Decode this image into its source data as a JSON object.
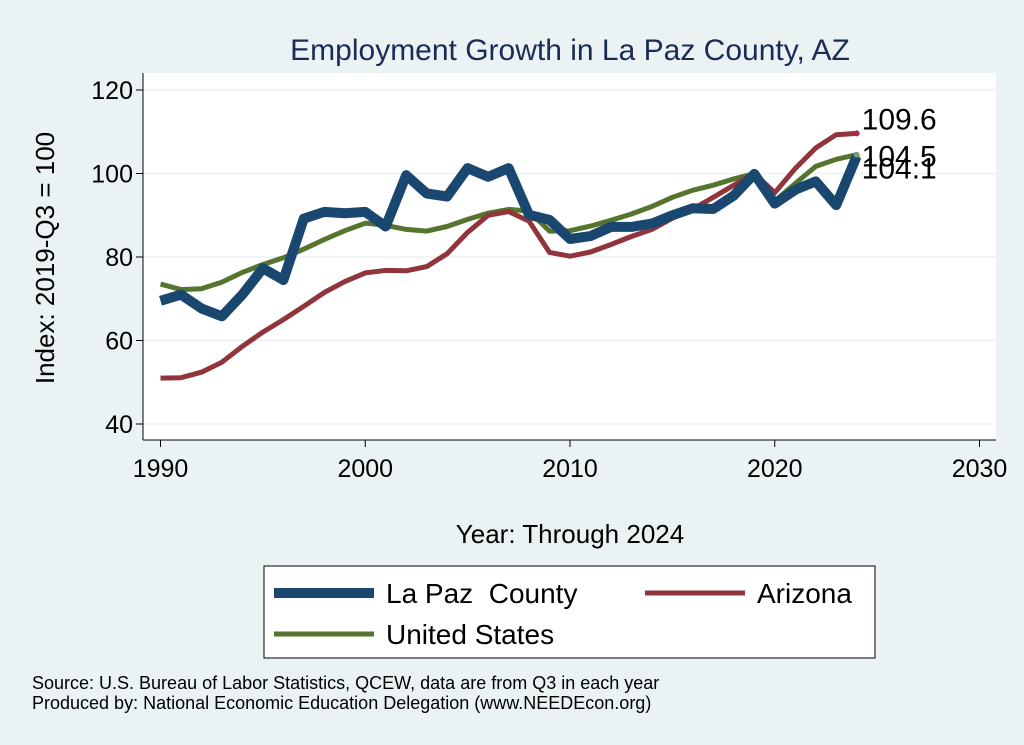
{
  "chart_data": {
    "type": "line",
    "title": "Employment Growth in La Paz County, AZ",
    "xlabel": "Year: Through 2024",
    "ylabel": "Index: 2019-Q3 = 100",
    "xlim": [
      1990,
      2030
    ],
    "ylim": [
      40,
      120
    ],
    "xticks": [
      1990,
      2000,
      2010,
      2020,
      2030
    ],
    "yticks": [
      40,
      60,
      80,
      100,
      120
    ],
    "grid": true,
    "legend_position": "bottom",
    "x": [
      1990,
      1991,
      1992,
      1993,
      1994,
      1995,
      1996,
      1997,
      1998,
      1999,
      2000,
      2001,
      2002,
      2003,
      2004,
      2005,
      2006,
      2007,
      2008,
      2009,
      2010,
      2011,
      2012,
      2013,
      2014,
      2015,
      2016,
      2017,
      2018,
      2019,
      2020,
      2021,
      2022,
      2023,
      2024
    ],
    "series": [
      {
        "name": "La Paz  County",
        "color": "#1a476f",
        "end_label": "104.1",
        "values": [
          69.5,
          71,
          67.7,
          65.8,
          71,
          77.3,
          74.5,
          89.2,
          90.8,
          90.5,
          90.8,
          87.3,
          99.6,
          95.2,
          94.5,
          101.3,
          99.2,
          101.3,
          90.1,
          88.9,
          84.3,
          85,
          87.2,
          87.2,
          88,
          90,
          91.7,
          91.5,
          94.7,
          99.9,
          92.8,
          96.1,
          98.1,
          92.4,
          104.1
        ]
      },
      {
        "name": "Arizona",
        "color": "#90353b",
        "end_label": "109.6",
        "values": [
          51,
          51.1,
          52.4,
          54.8,
          58.6,
          62,
          65,
          68.2,
          71.5,
          74.1,
          76.2,
          76.8,
          76.7,
          77.7,
          80.8,
          85.9,
          90,
          90.9,
          88.6,
          81.1,
          80.2,
          81.2,
          83,
          84.9,
          86.6,
          89.3,
          91.5,
          94.3,
          97.2,
          100,
          95.4,
          101.2,
          106.1,
          109.3,
          109.6
        ]
      },
      {
        "name": "United States",
        "color": "#55752f",
        "end_label": "104.5",
        "values": [
          73.5,
          72.2,
          72.4,
          74,
          76.3,
          78.2,
          79.8,
          81.9,
          84.2,
          86.3,
          88.1,
          87.6,
          86.6,
          86.2,
          87.3,
          89,
          90.5,
          91.4,
          91,
          86.2,
          86.3,
          87.4,
          88.8,
          90.3,
          92.1,
          94.3,
          96,
          97.2,
          98.7,
          100,
          93.4,
          97.6,
          101.7,
          103.4,
          104.5
        ]
      }
    ],
    "legend": [
      "La Paz  County",
      "Arizona",
      "United States"
    ],
    "notes": [
      "Source: U.S. Bureau of Labor Statistics, QCEW, data are from Q3 in each year",
      "Produced by: National Economic Education Delegation (www.NEEDEcon.org)"
    ]
  }
}
